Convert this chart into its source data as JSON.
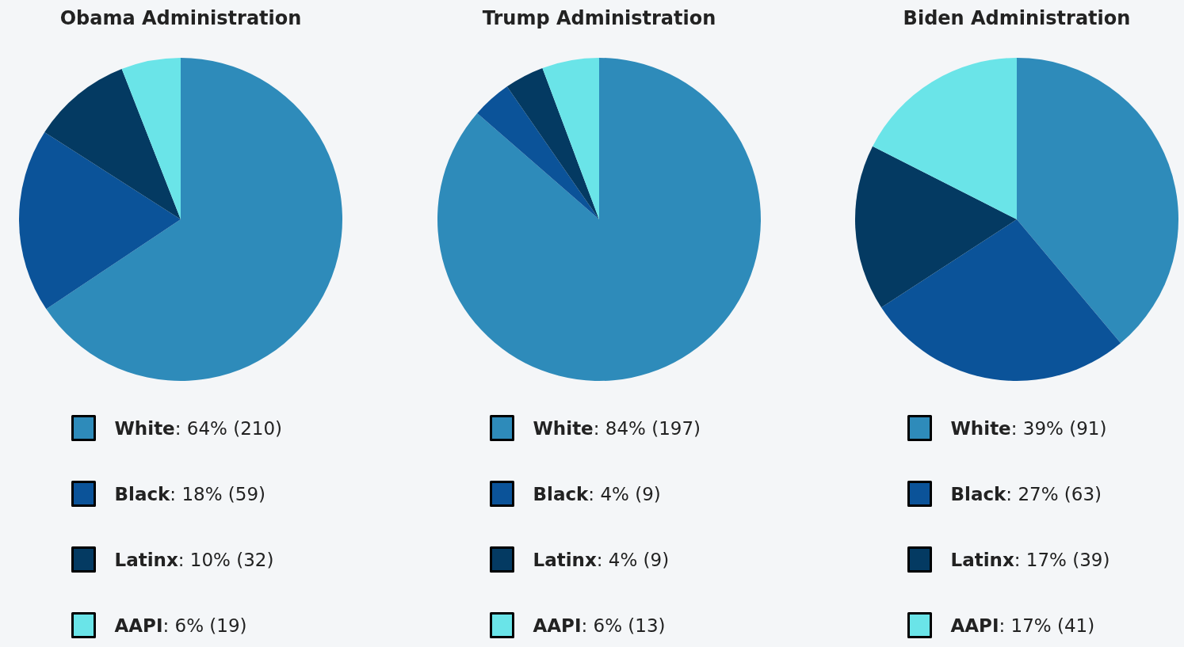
{
  "chart_data": [
    {
      "type": "pie",
      "title": "Obama Administration",
      "categories": [
        "White",
        "Black",
        "Latinx",
        "AAPI"
      ],
      "values": [
        210,
        59,
        32,
        19
      ],
      "value_labels": [
        ": 64% (210)",
        ": 18% (59)",
        ": 10% (32)",
        ": 6% (19)"
      ],
      "colors": [
        "#2e8bba",
        "#0b5399",
        "#043a62",
        "#6ae4e8"
      ],
      "legend": "bottom"
    },
    {
      "type": "pie",
      "title": "Trump Administration",
      "categories": [
        "White",
        "Black",
        "Latinx",
        "AAPI"
      ],
      "values": [
        197,
        9,
        9,
        13
      ],
      "value_labels": [
        ": 84% (197)",
        ": 4% (9)",
        ": 4% (9)",
        ": 6% (13)"
      ],
      "colors": [
        "#2e8bba",
        "#0b5399",
        "#043a62",
        "#6ae4e8"
      ],
      "legend": "bottom"
    },
    {
      "type": "pie",
      "title": "Biden Administration",
      "categories": [
        "White",
        "Black",
        "Latinx",
        "AAPI"
      ],
      "values": [
        91,
        63,
        39,
        41
      ],
      "value_labels": [
        ": 39% (91)",
        ": 27% (63)",
        ": 17% (39)",
        ": 17% (41)"
      ],
      "colors": [
        "#2e8bba",
        "#0b5399",
        "#043a62",
        "#6ae4e8"
      ],
      "legend": "bottom"
    }
  ]
}
